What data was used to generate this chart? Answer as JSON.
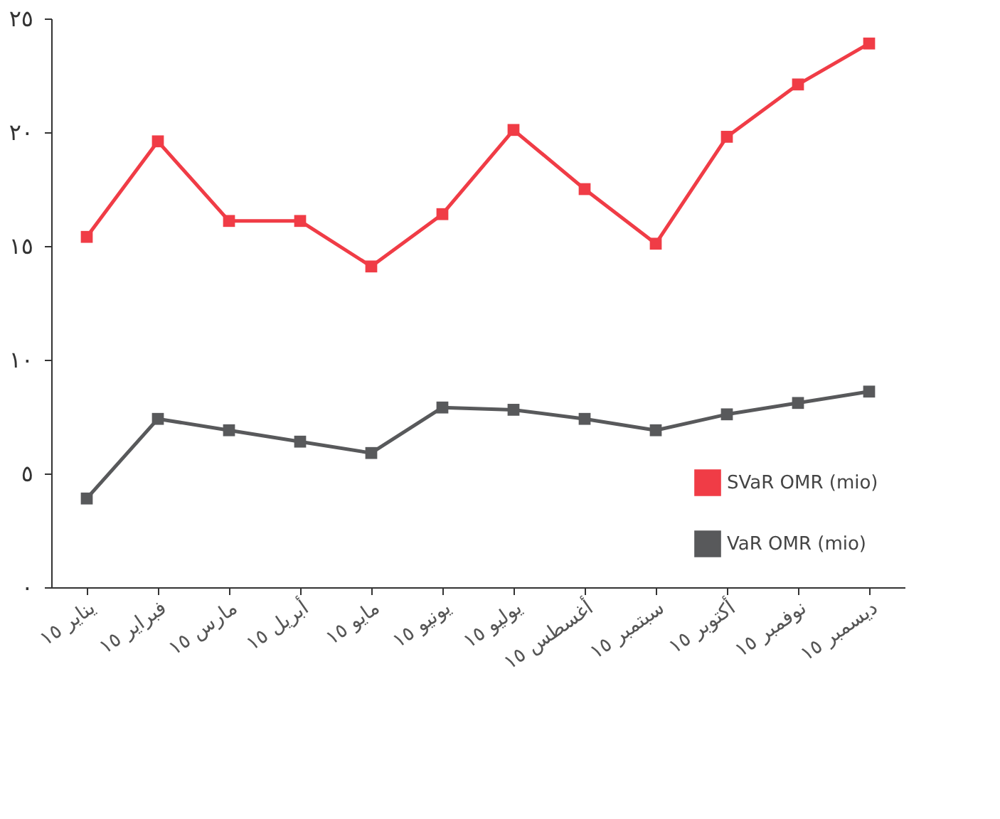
{
  "chart_data": {
    "type": "line",
    "categories": [
      "يناير ١٥",
      "فبراير ١٥",
      "مارس ١٥",
      "أبريل ١٥",
      "مايو ١٥",
      "يونيو ١٥",
      "يوليو ١٥",
      "أغسطس ١٥",
      "سبتمبر ١٥",
      "أكتوبر ١٥",
      "نوفمبر ١٥",
      "ديسمبر ١٥"
    ],
    "series": [
      {
        "name": "SVaR OMR (mio)",
        "color": "#f03c46",
        "values": [
          15.4,
          19.6,
          16.1,
          16.1,
          14.1,
          16.4,
          20.1,
          17.5,
          15.1,
          19.8,
          22.1,
          23.9
        ]
      },
      {
        "name": "VaR OMR (mio)",
        "color": "#58595b",
        "values": [
          3.9,
          7.4,
          6.9,
          6.4,
          5.9,
          7.9,
          7.8,
          7.4,
          6.9,
          7.6,
          8.1,
          8.6
        ]
      }
    ],
    "ylim": [
      0,
      25
    ],
    "yticks": [
      {
        "value": 0,
        "label": "٠"
      },
      {
        "value": 5,
        "label": "٥"
      },
      {
        "value": 10,
        "label": "١٠"
      },
      {
        "value": 15,
        "label": "١٥"
      },
      {
        "value": 20,
        "label": "٢٠"
      },
      {
        "value": 25,
        "label": "٢٥"
      }
    ],
    "grid": false,
    "legend": "bottom right",
    "marker": "square",
    "line_style": "solid"
  }
}
